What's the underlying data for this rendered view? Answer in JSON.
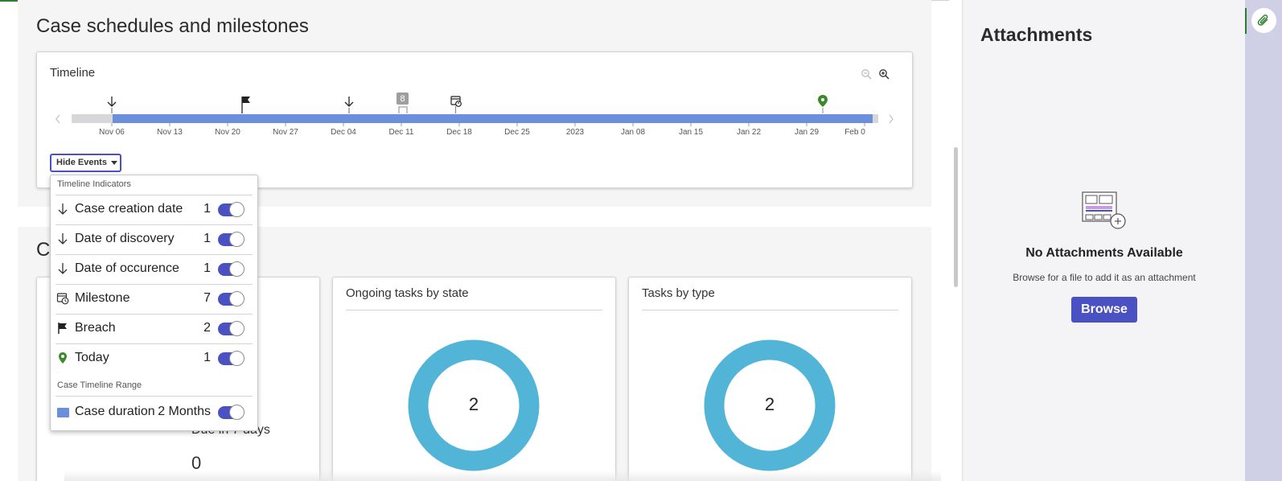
{
  "section": {
    "title": "Case schedules and milestones",
    "second_title_partial": "C"
  },
  "timeline": {
    "title": "Timeline",
    "icons": {
      "zoom_out": "zoom-out-icon",
      "zoom_in": "zoom-in-icon",
      "prev": "chevron-left-icon",
      "next": "chevron-right-icon"
    },
    "tick_labels": [
      "Nov 06",
      "Nov 13",
      "Nov 20",
      "Nov 27",
      "Dec 04",
      "Dec 11",
      "Dec 18",
      "Dec 25",
      "2023",
      "Jan 08",
      "Jan 15",
      "Jan 22",
      "Jan 29",
      "Feb 0"
    ],
    "cluster_count": "8",
    "hide_events_label": "Hide Events",
    "colors": {
      "bar_fill": "#6b8fdd",
      "bar_track": "#d7d7d9",
      "today_pin": "#3a8a2a",
      "cluster_badge": "#9e9e9e"
    }
  },
  "events_menu": {
    "group1": "Timeline Indicators",
    "rows": [
      {
        "icon": "arrow-down-icon",
        "label": "Case creation date",
        "count": "1",
        "enabled": true
      },
      {
        "icon": "arrow-down-icon",
        "label": "Date of discovery",
        "count": "1",
        "enabled": true
      },
      {
        "icon": "arrow-down-icon",
        "label": "Date of occurence",
        "count": "1",
        "enabled": true
      },
      {
        "icon": "milestone-calendar-icon",
        "label": "Milestone",
        "count": "7",
        "enabled": true
      },
      {
        "icon": "flag-icon",
        "label": "Breach",
        "count": "2",
        "enabled": true
      },
      {
        "icon": "location-pin-icon",
        "label": "Today",
        "count": "1",
        "enabled": true
      }
    ],
    "group2": "Case Timeline Range",
    "range_row": {
      "label": "Case duration",
      "value": "2 Months",
      "enabled": true
    }
  },
  "cards": {
    "card_a": {
      "due_text": "Due in 7 days",
      "value": "0"
    },
    "card_b": {
      "title": "Ongoing tasks by state",
      "donut_value": "2"
    },
    "card_c": {
      "title": "Tasks by type",
      "donut_value": "2"
    },
    "donut_color": "#52b5d8"
  },
  "attachments": {
    "title": "Attachments",
    "empty_title": "No Attachments Available",
    "empty_desc": "Browse for a file to add it as an attachment",
    "browse_label": "Browse"
  },
  "utility": {
    "icon": "paperclip-icon"
  }
}
